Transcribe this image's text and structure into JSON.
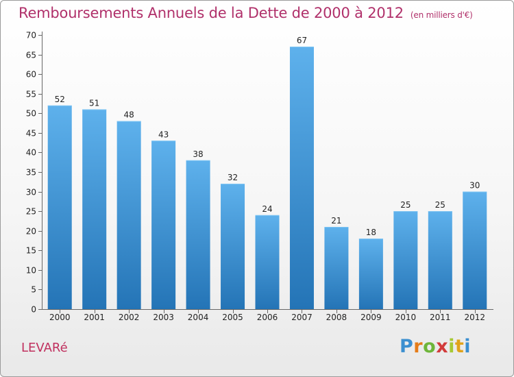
{
  "header": {
    "title": "Remboursements Annuels de la Dette de 2000 à 2012",
    "unit": "(en milliers d'€)"
  },
  "footer": {
    "commune": "LEVARé",
    "logo": [
      "P",
      "r",
      "o",
      "x",
      "i",
      "t",
      "i"
    ]
  },
  "colors": {
    "title": "#b0306a",
    "bar_top": "#5eb1ec",
    "bar_bottom": "#2474b6",
    "logo": [
      "#3b8fd0",
      "#e57c19",
      "#6eb53a",
      "#d23b3b",
      "#a6c934",
      "#e0a31a",
      "#3b8fd0"
    ]
  },
  "chart_data": {
    "type": "bar",
    "title": "Remboursements Annuels de la Dette de 2000 à 2012",
    "subtitle": "(en milliers d'€)",
    "categories": [
      "2000",
      "2001",
      "2002",
      "2003",
      "2004",
      "2005",
      "2006",
      "2007",
      "2008",
      "2009",
      "2010",
      "2011",
      "2012"
    ],
    "values": [
      52,
      51,
      48,
      43,
      38,
      32,
      24,
      67,
      21,
      18,
      25,
      25,
      30
    ],
    "ylim": [
      0,
      70
    ],
    "yticks": [
      0,
      5,
      10,
      15,
      20,
      25,
      30,
      35,
      40,
      45,
      50,
      55,
      60,
      65,
      70
    ],
    "grid": false,
    "legend": "none"
  }
}
